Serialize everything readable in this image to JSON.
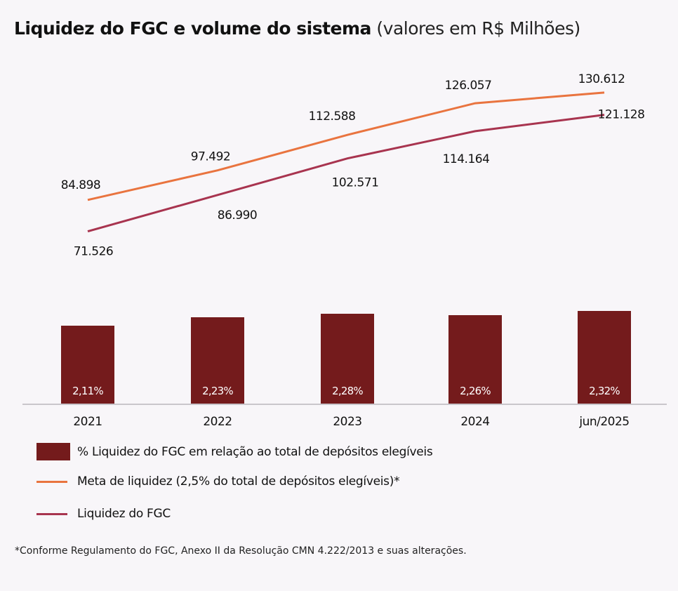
{
  "title": {
    "bold": "Liquidez do FGC e volume do sistema",
    "sub": "(valores em R$ Milhões)"
  },
  "chart_data": {
    "type": "bar+line",
    "categories": [
      "2021",
      "2022",
      "2023",
      "2024",
      "jun/2025"
    ],
    "bars": {
      "name": "% Liquidez do FGC em relação ao total de depósitos elegíveis",
      "values": [
        2.11,
        2.23,
        2.28,
        2.26,
        2.32
      ],
      "labels": [
        "2,11%",
        "2,23%",
        "2,28%",
        "2,26%",
        "2,32%"
      ],
      "color": "#741b1c"
    },
    "series": [
      {
        "name": "Meta de liquidez (2,5% do total de depósitos elegíveis)*",
        "values": [
          84898,
          97492,
          112588,
          126057,
          130612
        ],
        "labels": [
          "84.898",
          "97.492",
          "112.588",
          "126.057",
          "130.612"
        ],
        "color": "#e9743f"
      },
      {
        "name": "Liquidez do FGC",
        "values": [
          71526,
          86990,
          102571,
          114164,
          121128
        ],
        "labels": [
          "71.526",
          "86.990",
          "102.571",
          "114.164",
          "121.128"
        ],
        "color": "#a8344f"
      }
    ],
    "legend": "bottom-left",
    "grid": false
  },
  "footnote": "*Conforme Regulamento do FGC, Anexo II da Resolução CMN 4.222/2013 e suas alterações."
}
